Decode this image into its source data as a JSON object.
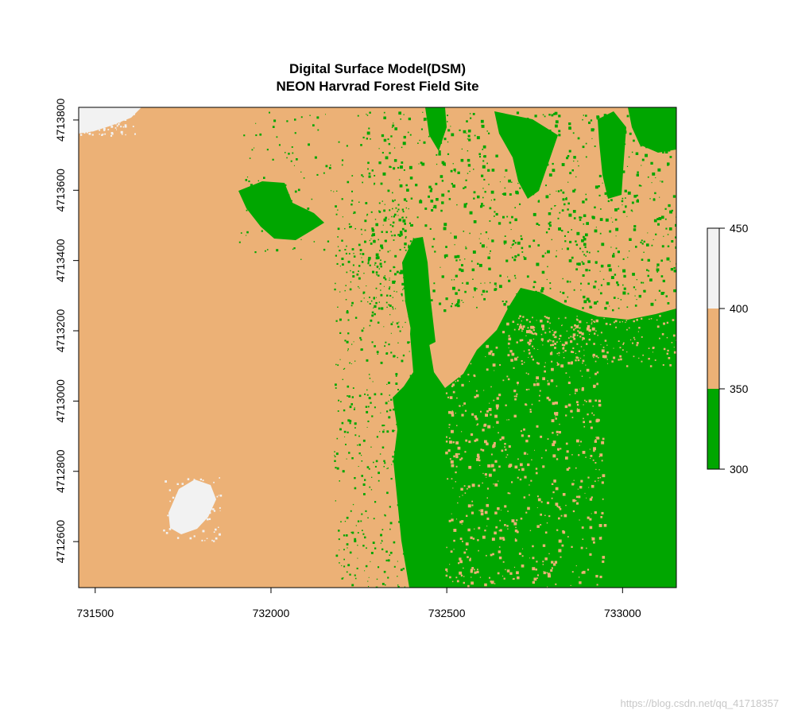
{
  "chart_data": {
    "type": "heatmap",
    "title": "Digital Surface Model(DSM)",
    "subtitle": "NEON Harvrad Forest Field Site",
    "xlabel": "",
    "ylabel": "",
    "xlim": [
      731453,
      733153
    ],
    "ylim": [
      4712469,
      4713836
    ],
    "x_ticks": [
      731500,
      732000,
      732500,
      733000
    ],
    "y_ticks": [
      4712600,
      4712800,
      4713000,
      4713200,
      4713400,
      4713600,
      4713800
    ],
    "legend": {
      "placement": "right",
      "breaks": [
        300,
        350,
        400,
        450
      ],
      "bins": [
        {
          "from": 300,
          "to": 350,
          "color": "#00A600"
        },
        {
          "from": 350,
          "to": 400,
          "color": "#ECB176"
        },
        {
          "from": 400,
          "to": 450,
          "color": "#F2F2F2"
        }
      ]
    },
    "colors": {
      "low": "#00A600",
      "mid": "#ECB176",
      "high": "#F2F2F2"
    }
  },
  "watermark": "https://blog.csdn.net/qq_41718357"
}
